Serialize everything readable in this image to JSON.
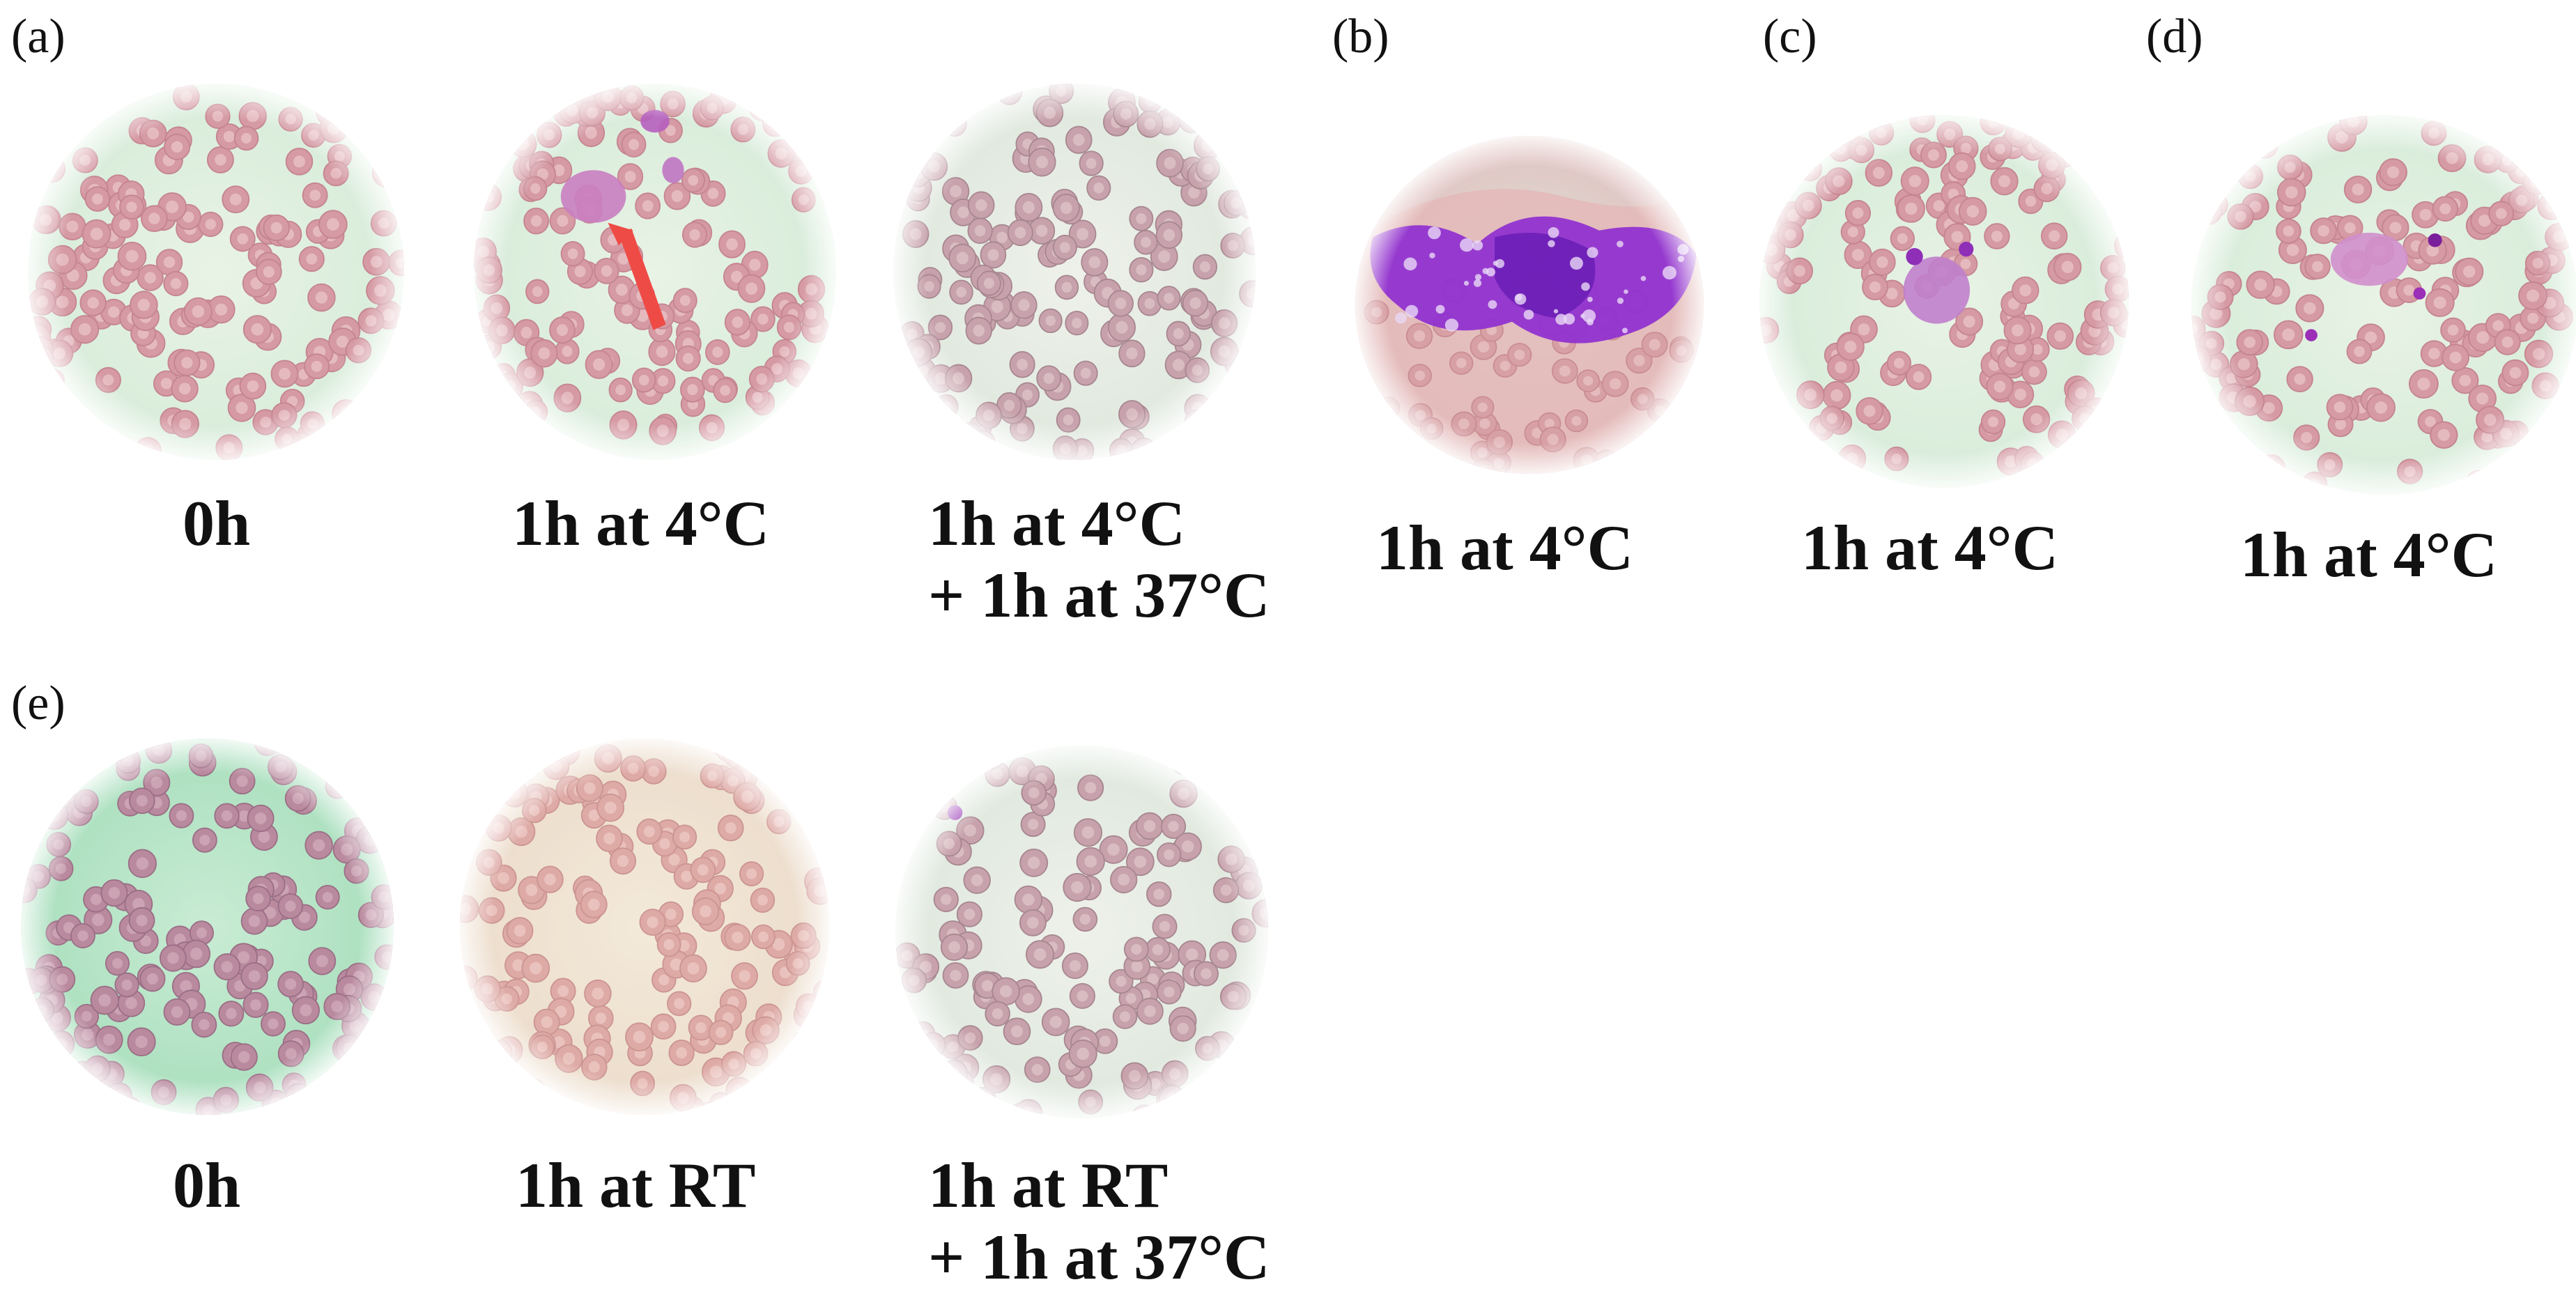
{
  "panels": {
    "a": {
      "label": "(a)",
      "images": [
        {
          "caption": "0h",
          "tone": "pink"
        },
        {
          "caption": "1h at 4°C",
          "tone": "pink",
          "has_clump": true,
          "has_arrow": true
        },
        {
          "caption_line1": "1h at 4°C",
          "caption_line2": "+ 1h at 37°C",
          "tone": "grey"
        }
      ]
    },
    "b": {
      "label": "(b)",
      "caption": "1h at 4°C"
    },
    "c": {
      "label": "(c)",
      "caption": "1h at 4°C"
    },
    "d": {
      "label": "(d)",
      "caption": "1h at 4°C"
    },
    "e": {
      "label": "(e)",
      "images": [
        {
          "caption": "0h",
          "tone": "green"
        },
        {
          "caption": "1h at RT",
          "tone": "beige"
        },
        {
          "caption_line1": "1h at RT",
          "caption_line2": "+ 1h at 37°C",
          "tone": "grey"
        }
      ]
    }
  },
  "colors": {
    "rbc_pink": "#d9a0a6",
    "background_green": "#cfe9d4",
    "platelet_purple": "#9b3fd0",
    "arrow_red": "#ef4b46"
  }
}
